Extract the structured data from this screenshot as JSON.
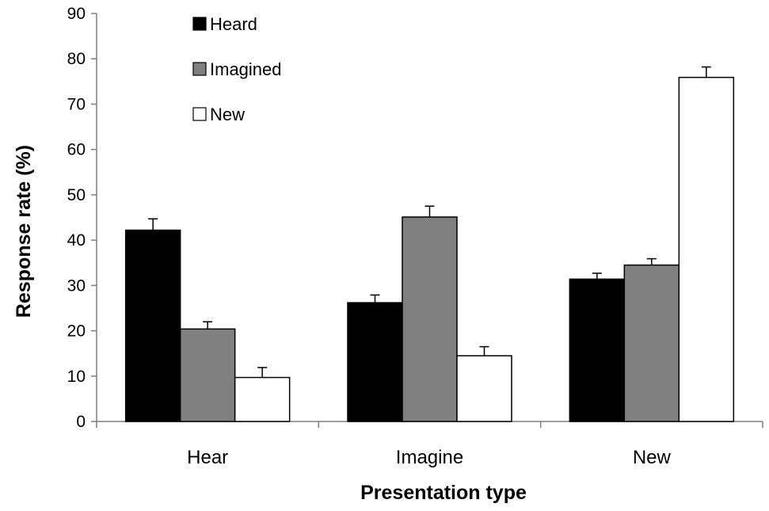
{
  "chart_data": {
    "type": "bar",
    "title": "",
    "xlabel": "Presentation type",
    "ylabel": "Response rate (%)",
    "ylim": [
      0,
      90
    ],
    "yticks": [
      0,
      10,
      20,
      30,
      40,
      50,
      60,
      70,
      80,
      90
    ],
    "categories": [
      "Hear",
      "Imagine",
      "New"
    ],
    "series": [
      {
        "name": "Heard",
        "color": "#000000",
        "values": [
          42.2,
          26.2,
          31.4
        ],
        "errors": [
          2.5,
          1.7,
          1.3
        ]
      },
      {
        "name": "Imagined",
        "color": "#808080",
        "values": [
          20.4,
          45.1,
          34.5
        ],
        "errors": [
          1.6,
          2.4,
          1.4
        ]
      },
      {
        "name": "New",
        "color": "#ffffff",
        "values": [
          9.7,
          14.5,
          75.9
        ],
        "errors": [
          2.2,
          2.0,
          2.3
        ]
      }
    ],
    "legend": "top-left",
    "grid": false
  }
}
